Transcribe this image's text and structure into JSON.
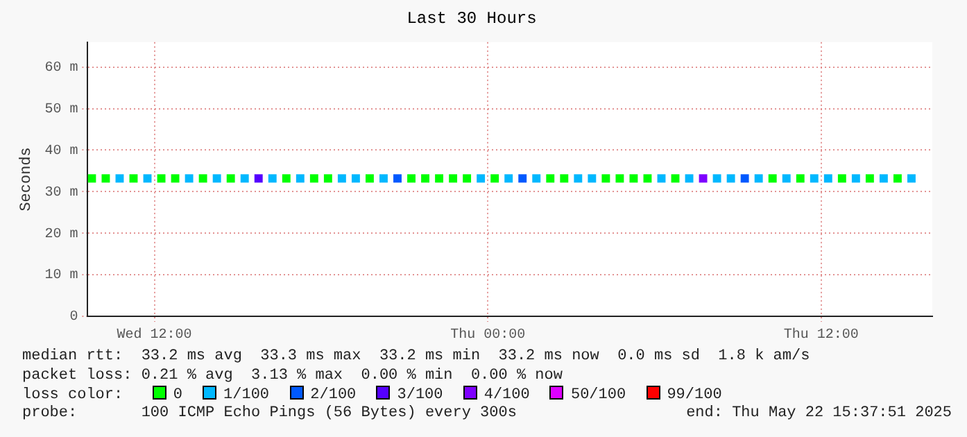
{
  "chart_data": {
    "type": "scatter",
    "title": "Last 30 Hours",
    "ylabel": "Seconds",
    "legend_title": "loss color:",
    "legend": "bottom",
    "marker": "square",
    "grid": true,
    "xlim": [
      "2025-05-21T09:36",
      "2025-05-22T16:00"
    ],
    "xticks": [
      {
        "value": "2025-05-21T12:00",
        "label": "Wed 12:00"
      },
      {
        "value": "2025-05-22T00:00",
        "label": "Thu 00:00"
      },
      {
        "value": "2025-05-22T12:00",
        "label": "Thu 12:00"
      }
    ],
    "ylim": [
      0,
      66
    ],
    "yticks": [
      0,
      {
        "value": 10,
        "label": "10 m"
      },
      {
        "value": 20,
        "label": "20 m"
      },
      {
        "value": 30,
        "label": "30 m"
      },
      {
        "value": 40,
        "label": "40 m"
      },
      {
        "value": 50,
        "label": "50 m"
      },
      {
        "value": 60,
        "label": "60 m"
      }
    ],
    "series": [
      {
        "name": "0",
        "color": "#00ff00",
        "x": [
          "2025-05-21T09:45",
          "2025-05-21T10:15",
          "2025-05-21T11:15",
          "2025-05-21T12:15",
          "2025-05-21T12:45",
          "2025-05-21T13:45",
          "2025-05-21T14:45",
          "2025-05-21T16:45",
          "2025-05-21T17:45",
          "2025-05-21T18:15",
          "2025-05-21T19:45",
          "2025-05-21T21:15",
          "2025-05-21T21:45",
          "2025-05-21T22:15",
          "2025-05-21T22:45",
          "2025-05-21T23:15",
          "2025-05-22T00:15",
          "2025-05-22T02:15",
          "2025-05-22T02:45",
          "2025-05-22T04:15",
          "2025-05-22T04:45",
          "2025-05-22T05:15",
          "2025-05-22T05:45",
          "2025-05-22T06:45",
          "2025-05-22T10:15",
          "2025-05-22T11:15",
          "2025-05-22T12:45",
          "2025-05-22T13:45",
          "2025-05-22T14:45"
        ],
        "values": [
          33.2,
          33.2,
          33.2,
          33.2,
          33.2,
          33.2,
          33.2,
          33.2,
          33.2,
          33.2,
          33.2,
          33.2,
          33.2,
          33.2,
          33.2,
          33.2,
          33.2,
          33.2,
          33.2,
          33.2,
          33.2,
          33.2,
          33.2,
          33.2,
          33.2,
          33.2,
          33.2,
          33.2,
          33.2
        ]
      },
      {
        "name": "1/100",
        "color": "#00b8ff",
        "x": [
          "2025-05-21T10:45",
          "2025-05-21T11:45",
          "2025-05-21T13:15",
          "2025-05-21T14:15",
          "2025-05-21T15:15",
          "2025-05-21T16:15",
          "2025-05-21T17:15",
          "2025-05-21T18:45",
          "2025-05-21T19:15",
          "2025-05-21T20:15",
          "2025-05-21T23:45",
          "2025-05-22T00:45",
          "2025-05-22T01:45",
          "2025-05-22T03:15",
          "2025-05-22T03:45",
          "2025-05-22T06:15",
          "2025-05-22T07:15",
          "2025-05-22T08:15",
          "2025-05-22T08:45",
          "2025-05-22T09:45",
          "2025-05-22T10:45",
          "2025-05-22T11:45",
          "2025-05-22T12:15",
          "2025-05-22T13:15",
          "2025-05-22T14:15",
          "2025-05-22T15:15"
        ],
        "values": [
          33.2,
          33.2,
          33.2,
          33.2,
          33.2,
          33.2,
          33.2,
          33.2,
          33.2,
          33.2,
          33.2,
          33.2,
          33.2,
          33.2,
          33.2,
          33.2,
          33.2,
          33.2,
          33.2,
          33.2,
          33.2,
          33.2,
          33.2,
          33.2,
          33.2,
          33.2
        ]
      },
      {
        "name": "2/100",
        "color": "#0059ff",
        "x": [
          "2025-05-21T20:45",
          "2025-05-22T01:15",
          "2025-05-22T09:15"
        ],
        "values": [
          33.2,
          33.2,
          33.2
        ]
      },
      {
        "name": "3/100",
        "color": "#5500ff",
        "x": [
          "2025-05-21T15:45"
        ],
        "values": [
          33.2
        ]
      },
      {
        "name": "4/100",
        "color": "#7e00ff",
        "x": [
          "2025-05-22T07:45"
        ],
        "values": [
          33.2
        ]
      },
      {
        "name": "50/100",
        "color": "#dd00ff"
      },
      {
        "name": "99/100",
        "color": "#ff0000"
      }
    ],
    "annotations": [
      "median rtt:  33.2 ms avg  33.3 ms max  33.2 ms min  33.2 ms now  0.0 ms sd  1.8 k am/s",
      "packet loss: 0.21 % avg  3.13 % max  0.00 % min  0.00 % now",
      "probe:       100 ICMP Echo Pings (56 Bytes) every 300s",
      "end: Thu May 22 15:37:51 2025"
    ]
  }
}
